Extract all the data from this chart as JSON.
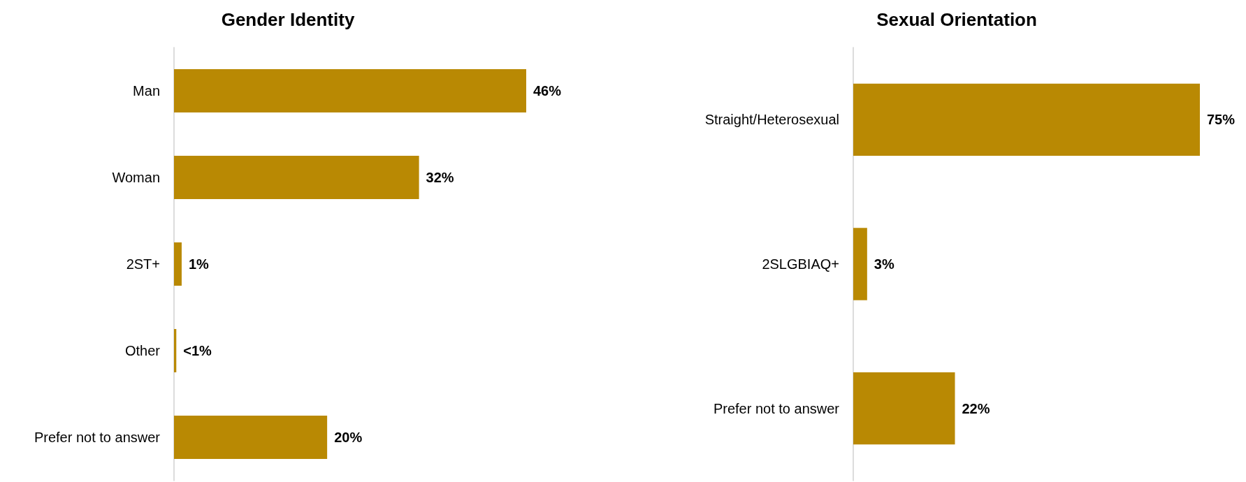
{
  "chart_data": [
    {
      "type": "bar",
      "orientation": "horizontal",
      "title": "Gender Identity",
      "categories": [
        "Man",
        "Woman",
        "2ST+",
        "Other",
        "Prefer not to answer"
      ],
      "values": [
        46,
        32,
        1,
        0.3,
        20
      ],
      "value_labels": [
        "46%",
        "32%",
        "1%",
        "<1%",
        "20%"
      ],
      "color": "#b98903"
    },
    {
      "type": "bar",
      "orientation": "horizontal",
      "title": "Sexual Orientation",
      "categories": [
        "Straight/Heterosexual",
        "2SLGBIAQ+",
        "Prefer not to answer"
      ],
      "values": [
        75,
        3,
        22
      ],
      "value_labels": [
        "75%",
        "3%",
        "22%"
      ],
      "color": "#b98903"
    }
  ]
}
